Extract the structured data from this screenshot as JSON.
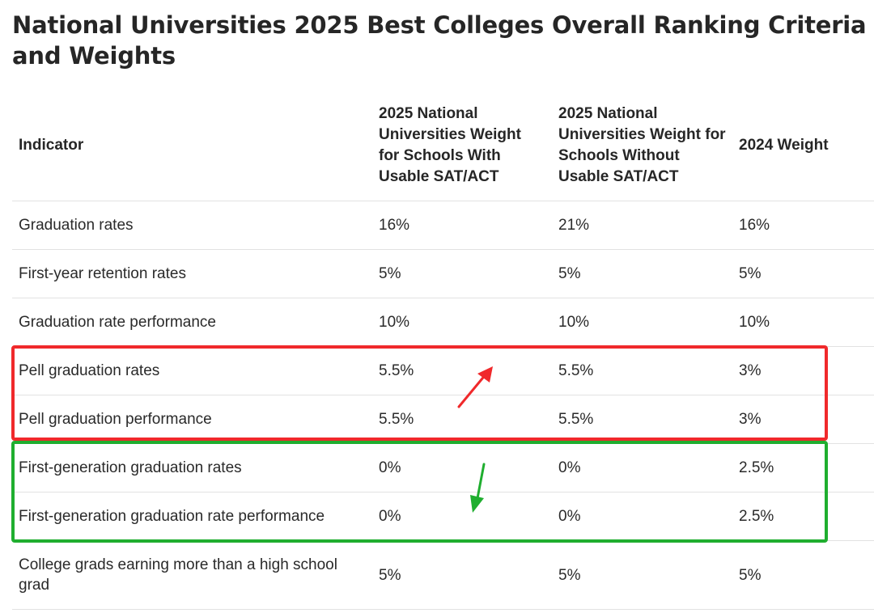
{
  "title": "National Universities 2025 Best Colleges Overall Ranking Criteria and Weights",
  "table": {
    "headers": [
      "Indicator",
      "2025 National Universities Weight for Schools With Usable SAT/ACT",
      "2025 National Universities Weight for Schools Without Usable SAT/ACT",
      "2024 Weight"
    ],
    "rows": [
      [
        "Graduation rates",
        "16%",
        "21%",
        "16%"
      ],
      [
        "First-year retention rates",
        "5%",
        "5%",
        "5%"
      ],
      [
        "Graduation rate performance",
        "10%",
        "10%",
        "10%"
      ],
      [
        "Pell graduation rates",
        "5.5%",
        "5.5%",
        "3%"
      ],
      [
        "Pell graduation performance",
        "5.5%",
        "5.5%",
        "3%"
      ],
      [
        "First-generation graduation rates",
        "0%",
        "0%",
        "2.5%"
      ],
      [
        "First-generation graduation rate performance",
        "0%",
        "0%",
        "2.5%"
      ],
      [
        "College grads earning more than a high school grad",
        "5%",
        "5%",
        "5%"
      ]
    ]
  },
  "annotations": {
    "red_color": "#f0292b",
    "green_color": "#1fae2f",
    "red_arrow_icon": "arrow-up-right-icon",
    "green_arrow_icon": "arrow-down-icon"
  }
}
